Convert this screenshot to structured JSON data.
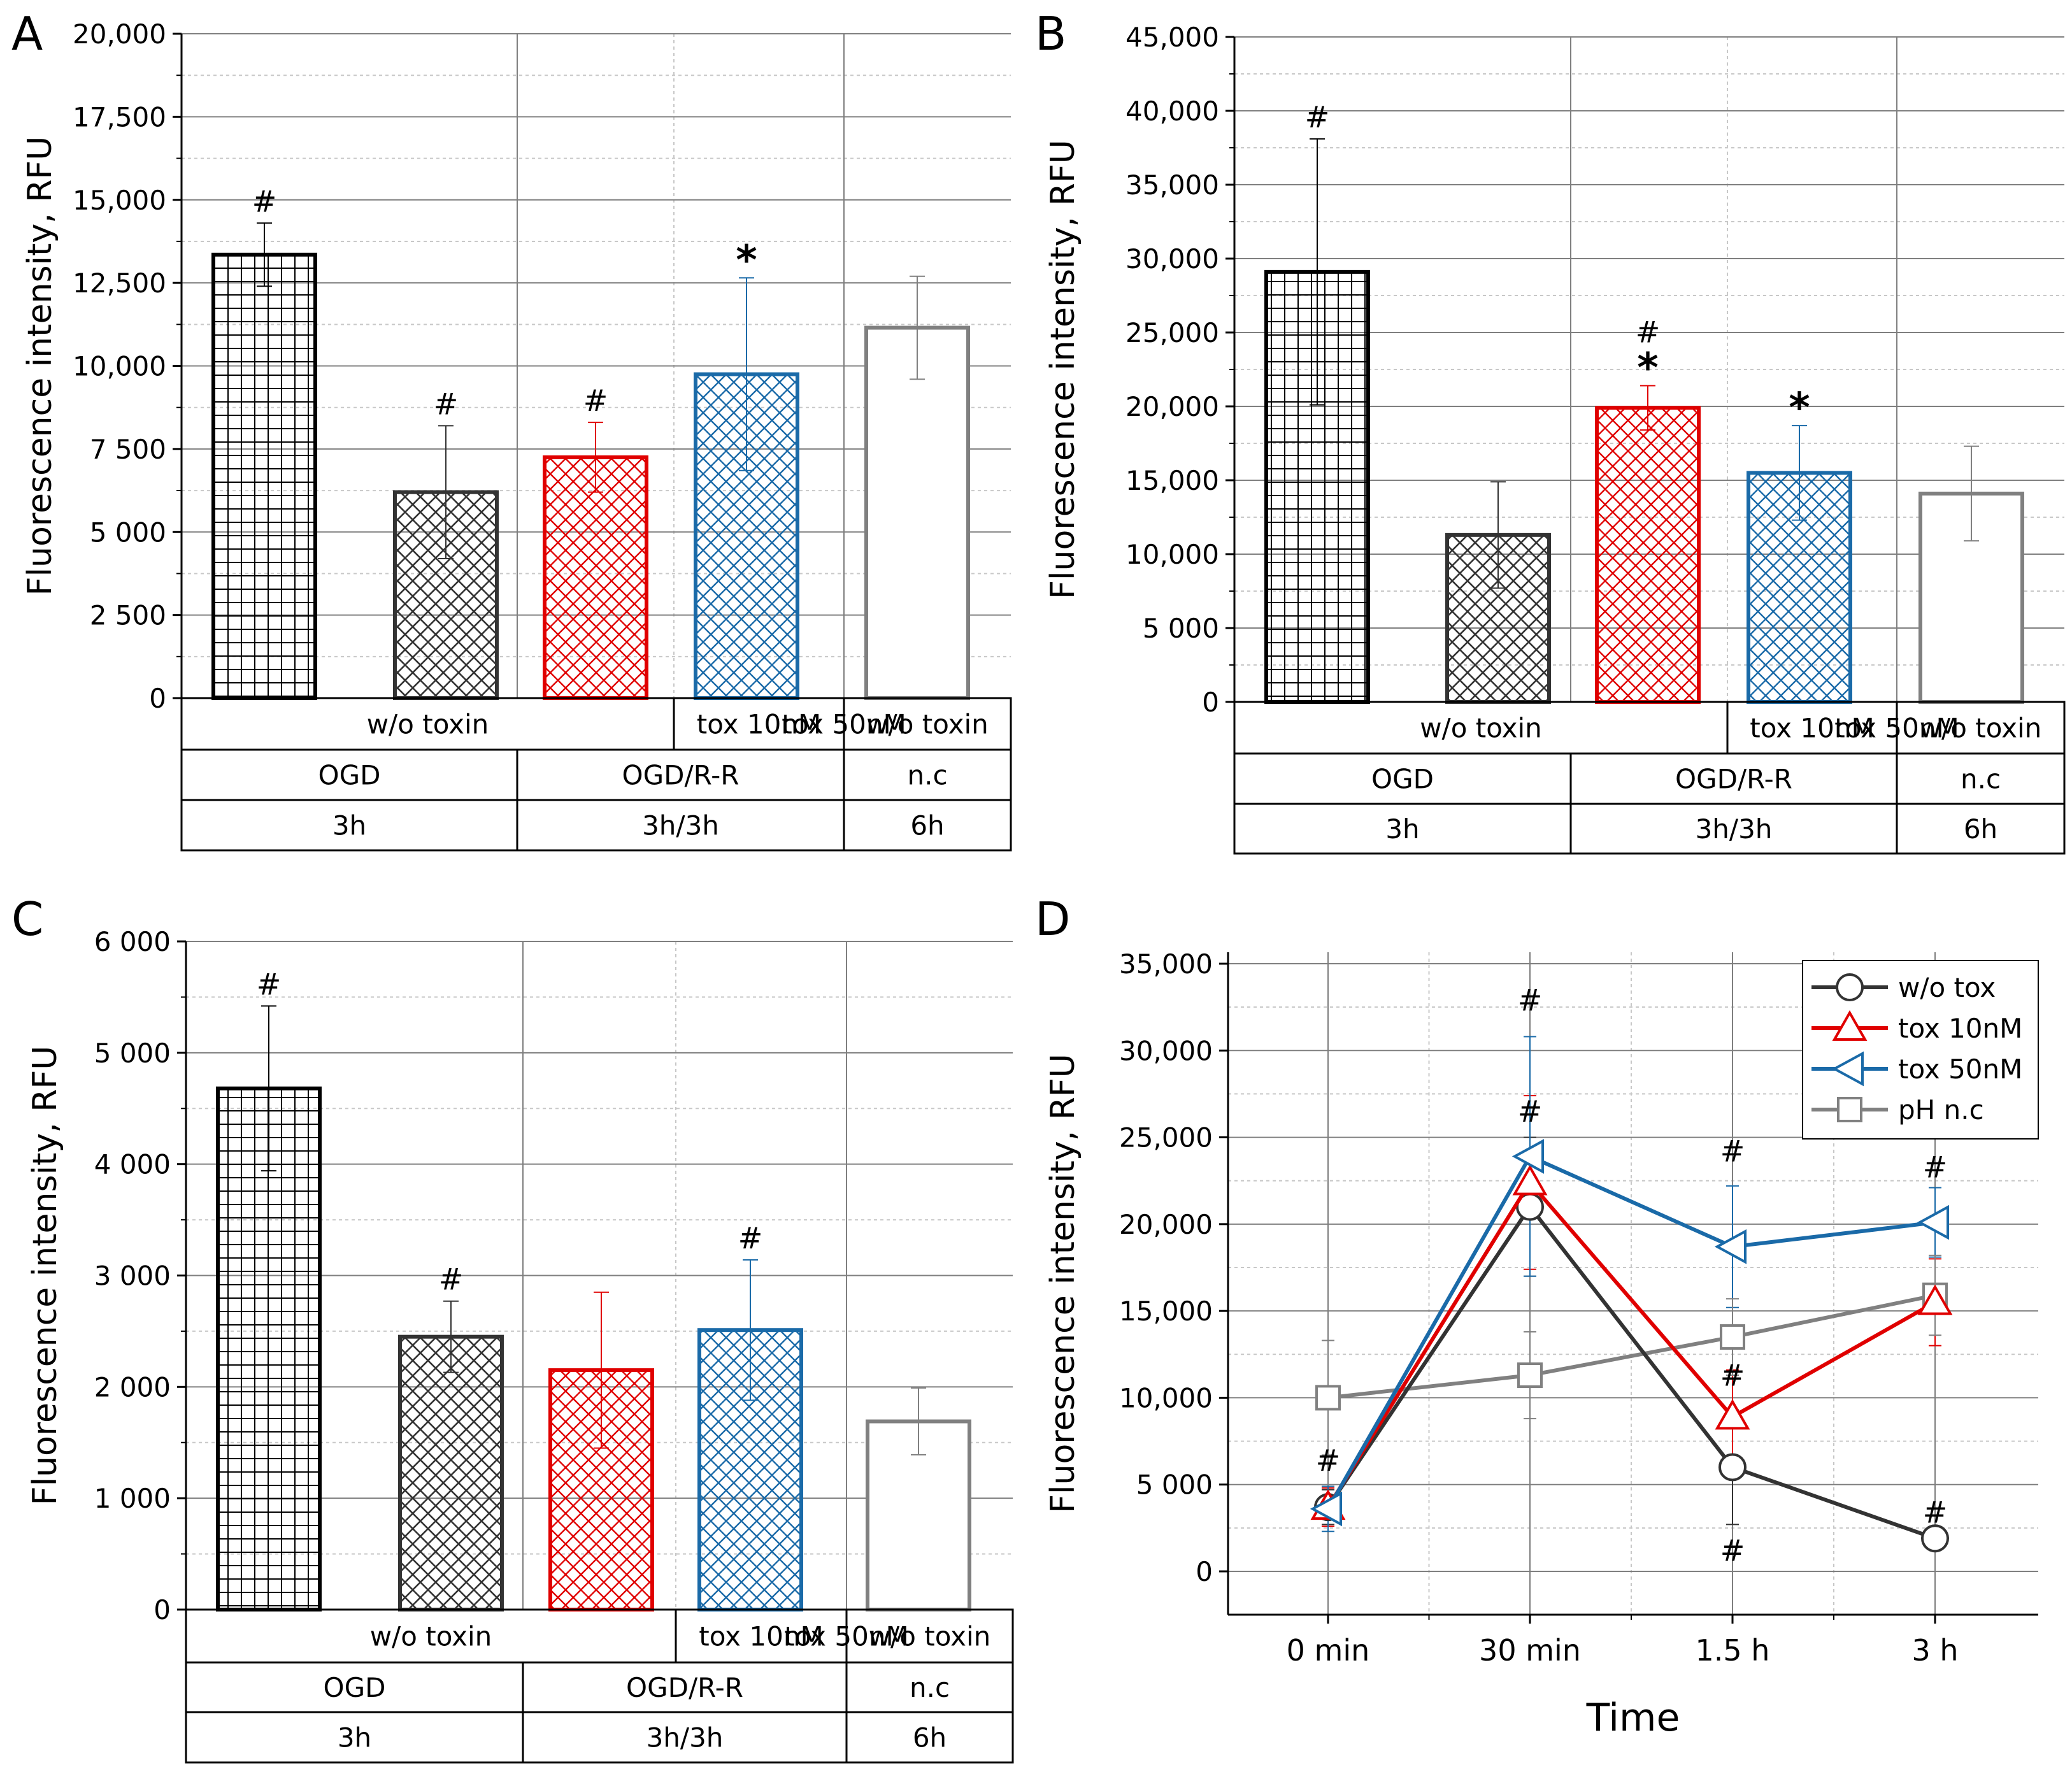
{
  "colors": {
    "black": "#000000",
    "dark": "#333333",
    "red": "#e00000",
    "blue": "#1a6aa8",
    "gray": "#808080",
    "grid": "#7f7f7f",
    "grid_minor": "#c8c8c8"
  },
  "chart_data": [
    {
      "panel": "A",
      "type": "bar",
      "ylabel": "Fluorescence intensity, RFU",
      "ylim": [
        0,
        20000
      ],
      "yticks": [
        0,
        2500,
        5000,
        7500,
        10000,
        12500,
        15000,
        17500,
        20000
      ],
      "ytick_labels": [
        "0",
        "2 500",
        "5 000",
        "7 500",
        "10,000",
        "12,500",
        "15,000",
        "17,500",
        "20,000"
      ],
      "bars": [
        {
          "value": 13350,
          "error": 950,
          "marker": "#",
          "pattern": "grid",
          "color": "black"
        },
        {
          "value": 6200,
          "error": 2000,
          "marker": "#",
          "pattern": "cross",
          "color": "dark"
        },
        {
          "value": 7250,
          "error": 1050,
          "marker": "#",
          "pattern": "cross",
          "color": "red"
        },
        {
          "value": 9750,
          "error": 2900,
          "marker": "*",
          "pattern": "cross",
          "color": "blue"
        },
        {
          "value": 11150,
          "error": 1550,
          "marker": "",
          "pattern": "none",
          "color": "gray"
        }
      ],
      "table": {
        "row1": [
          "w/o toxin",
          "tox 10nM",
          "tox 50nM",
          "w/o toxin"
        ],
        "row2": [
          "OGD",
          "OGD/R-R",
          "n.c"
        ],
        "row3": [
          "3h",
          "3h/3h",
          "6h"
        ]
      }
    },
    {
      "panel": "B",
      "type": "bar",
      "ylabel": "Fluorescence intensity, RFU",
      "ylim": [
        0,
        45000
      ],
      "yticks": [
        0,
        5000,
        10000,
        15000,
        20000,
        25000,
        30000,
        35000,
        40000,
        45000
      ],
      "ytick_labels": [
        "0",
        "5 000",
        "10,000",
        "15,000",
        "20,000",
        "25,000",
        "30,000",
        "35,000",
        "40,000",
        "45,000"
      ],
      "bars": [
        {
          "value": 29100,
          "error": 9000,
          "marker": "#",
          "pattern": "grid",
          "color": "black"
        },
        {
          "value": 11300,
          "error": 3600,
          "marker": "",
          "pattern": "cross",
          "color": "dark"
        },
        {
          "value": 19900,
          "error": 1500,
          "marker": "#*",
          "pattern": "cross",
          "color": "red"
        },
        {
          "value": 15500,
          "error": 3200,
          "marker": "*",
          "pattern": "cross",
          "color": "blue"
        },
        {
          "value": 14100,
          "error": 3200,
          "marker": "",
          "pattern": "none",
          "color": "gray"
        }
      ],
      "table": {
        "row1": [
          "w/o toxin",
          "tox 10nM",
          "tox 50nM",
          "w/o toxin"
        ],
        "row2": [
          "OGD",
          "OGD/R-R",
          "n.c"
        ],
        "row3": [
          "3h",
          "3h/3h",
          "6h"
        ]
      }
    },
    {
      "panel": "C",
      "type": "bar",
      "ylabel": "Fluorescence intensity, RFU",
      "ylim": [
        0,
        6000
      ],
      "yticks": [
        0,
        1000,
        2000,
        3000,
        4000,
        5000,
        6000
      ],
      "ytick_labels": [
        "0",
        "1 000",
        "2 000",
        "3 000",
        "4 000",
        "5 000",
        "6 000"
      ],
      "bars": [
        {
          "value": 4680,
          "error": 740,
          "marker": "#",
          "pattern": "grid",
          "color": "black"
        },
        {
          "value": 2450,
          "error": 320,
          "marker": "#",
          "pattern": "cross",
          "color": "dark"
        },
        {
          "value": 2150,
          "error": 700,
          "marker": "",
          "pattern": "cross",
          "color": "red"
        },
        {
          "value": 2510,
          "error": 630,
          "marker": "#",
          "pattern": "cross",
          "color": "blue"
        },
        {
          "value": 1690,
          "error": 300,
          "marker": "",
          "pattern": "none",
          "color": "gray"
        }
      ],
      "table": {
        "row1": [
          "w/o toxin",
          "tox 10nM",
          "tox 50nM",
          "w/o toxin"
        ],
        "row2": [
          "OGD",
          "OGD/R-R",
          "n.c"
        ],
        "row3": [
          "3h",
          "3h/3h",
          "6h"
        ]
      }
    },
    {
      "panel": "D",
      "type": "line",
      "xlabel": "Time",
      "ylabel": "Fluorescence intensity, RFU",
      "categories": [
        "0 min",
        "30 min",
        "1.5 h",
        "3 h"
      ],
      "ylim": [
        -2500,
        35000
      ],
      "yticks": [
        0,
        5000,
        10000,
        15000,
        20000,
        25000,
        30000,
        35000
      ],
      "ytick_labels": [
        "0",
        "5 000",
        "10,000",
        "15,000",
        "20,000",
        "25,000",
        "30,000",
        "35,000"
      ],
      "legend_position": "top-right",
      "series": [
        {
          "name": "w/o tox",
          "marker": "circle",
          "color": "dark",
          "values": [
            3700,
            21000,
            6000,
            1900
          ],
          "errors": [
            1000,
            4000,
            3300,
            500
          ]
        },
        {
          "name": "tox 10nM",
          "marker": "triangle-up",
          "color": "red",
          "values": [
            3700,
            22400,
            8900,
            15500
          ],
          "errors": [
            1100,
            5000,
            2700,
            2500
          ]
        },
        {
          "name": "tox 50nM",
          "marker": "triangle-left",
          "color": "blue",
          "values": [
            3600,
            23900,
            18700,
            20100
          ],
          "errors": [
            1300,
            6900,
            3500,
            2000
          ]
        },
        {
          "name": "pH n.c",
          "marker": "square",
          "color": "gray",
          "values": [
            10000,
            11300,
            13500,
            15900
          ],
          "errors": [
            3300,
            2500,
            2200,
            2300
          ]
        }
      ],
      "annotations": [
        {
          "text": "#",
          "category": "0 min",
          "value": 5800
        },
        {
          "text": "#",
          "category": "30 min",
          "value": 32300
        },
        {
          "text": "#",
          "category": "30 min",
          "value": 25900
        },
        {
          "text": "#",
          "category": "1.5 h",
          "value": 23600
        },
        {
          "text": "#",
          "category": "1.5 h",
          "value": 10700
        },
        {
          "text": "#",
          "category": "1.5 h",
          "value": 600
        },
        {
          "text": "#",
          "category": "3 h",
          "value": 22700
        },
        {
          "text": "#",
          "category": "3 h",
          "value": 2800
        }
      ]
    }
  ]
}
